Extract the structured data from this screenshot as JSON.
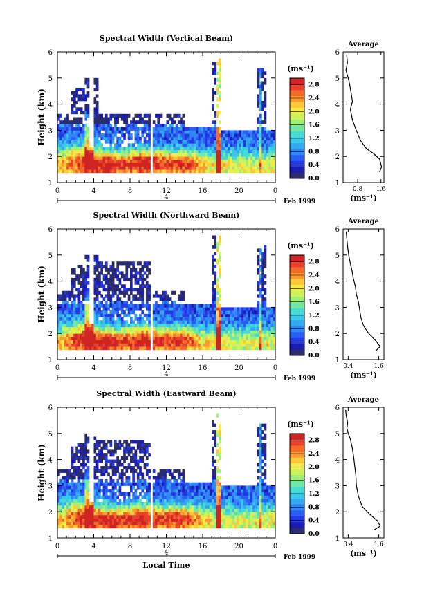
{
  "colorbar": {
    "unit_label": "(ms⁻¹)",
    "ticks": [
      "2.8",
      "2.4",
      "2.0",
      "1.6",
      "1.2",
      "0.8",
      "0.4",
      "0.0"
    ],
    "colors": [
      "#2b2c6e",
      "#1b1db0",
      "#2438e6",
      "#2a5ef5",
      "#2f86f5",
      "#33a8f0",
      "#37c8ea",
      "#46dcd4",
      "#6ee8a4",
      "#9ef07a",
      "#cff25c",
      "#f4ec44",
      "#fbc93a",
      "#fb9a30",
      "#f56a28",
      "#e8402a",
      "#cf2424"
    ]
  },
  "chart_data": [
    {
      "type": "heatmap",
      "title": "Spectral Width (Vertical Beam)",
      "ylabel": "Height (km)",
      "xlabel": "",
      "x_ticks": [
        "0",
        "4",
        "8",
        "12",
        "16",
        "20",
        "0"
      ],
      "y_ticks": [
        "1",
        "2",
        "3",
        "4",
        "5",
        "6"
      ],
      "xlim": [
        0,
        24
      ],
      "ylim": [
        1,
        6
      ],
      "date_label": "Feb 1999",
      "date_day": "4",
      "color_range": [
        0.0,
        3.0
      ],
      "profile": {
        "title": "Average",
        "xlabel": "(ms⁻¹)",
        "x_ticks": [
          "0.8",
          "1.6"
        ],
        "xlim": [
          0.3,
          1.7
        ],
        "y_ticks": [
          "1",
          "2",
          "3",
          "4",
          "5",
          "6"
        ],
        "ylim": [
          1,
          6
        ],
        "points": [
          [
            1.55,
            1.4
          ],
          [
            1.62,
            1.6
          ],
          [
            1.55,
            1.9
          ],
          [
            1.35,
            2.1
          ],
          [
            1.1,
            2.3
          ],
          [
            0.9,
            2.6
          ],
          [
            0.75,
            3.0
          ],
          [
            0.62,
            3.4
          ],
          [
            0.55,
            3.8
          ],
          [
            0.62,
            4.1
          ],
          [
            0.58,
            4.4
          ],
          [
            0.55,
            4.6
          ],
          [
            0.5,
            4.9
          ],
          [
            0.45,
            5.1
          ],
          [
            0.4,
            5.3
          ],
          [
            0.45,
            5.6
          ],
          [
            0.42,
            5.9
          ]
        ]
      }
    },
    {
      "type": "heatmap",
      "title": "Spectral Width (Northward Beam)",
      "ylabel": "Height (km)",
      "xlabel": "",
      "x_ticks": [
        "0",
        "4",
        "8",
        "12",
        "16",
        "20",
        "0"
      ],
      "y_ticks": [
        "1",
        "2",
        "3",
        "4",
        "5",
        "6"
      ],
      "xlim": [
        0,
        24
      ],
      "ylim": [
        1,
        6
      ],
      "date_label": "Feb 1999",
      "date_day": "4",
      "color_range": [
        0.0,
        3.0
      ],
      "profile": {
        "title": "Average",
        "xlabel": "(ms⁻¹)",
        "x_ticks": [
          "0.4",
          "1.6"
        ],
        "xlim": [
          0.2,
          1.8
        ],
        "y_ticks": [
          "1",
          "2",
          "3",
          "4",
          "5",
          "6"
        ],
        "ylim": [
          1,
          6
        ],
        "points": [
          [
            1.5,
            1.35
          ],
          [
            1.65,
            1.5
          ],
          [
            1.5,
            1.7
          ],
          [
            1.2,
            2.0
          ],
          [
            1.0,
            2.3
          ],
          [
            0.9,
            2.6
          ],
          [
            0.85,
            2.9
          ],
          [
            0.8,
            3.2
          ],
          [
            0.72,
            3.5
          ],
          [
            0.68,
            3.8
          ],
          [
            0.6,
            4.1
          ],
          [
            0.55,
            4.4
          ],
          [
            0.48,
            4.7
          ],
          [
            0.42,
            5.0
          ],
          [
            0.38,
            5.3
          ],
          [
            0.35,
            5.6
          ],
          [
            0.32,
            5.9
          ]
        ]
      }
    },
    {
      "type": "heatmap",
      "title": "Spectral Width (Eastward Beam)",
      "ylabel": "Height (km)",
      "xlabel": "Local Time",
      "x_ticks": [
        "0",
        "4",
        "8",
        "12",
        "16",
        "20",
        "0"
      ],
      "y_ticks": [
        "1",
        "2",
        "3",
        "4",
        "5",
        "6"
      ],
      "xlim": [
        0,
        24
      ],
      "ylim": [
        1,
        6
      ],
      "date_label": "Feb 1999",
      "date_day": "4",
      "color_range": [
        0.0,
        3.0
      ],
      "profile": {
        "title": "Average",
        "xlabel": "(ms⁻¹)",
        "x_ticks": [
          "0.4",
          "1.6"
        ],
        "xlim": [
          0.2,
          1.8
        ],
        "y_ticks": [
          "1",
          "2",
          "3",
          "4",
          "5",
          "6"
        ],
        "ylim": [
          1,
          6
        ],
        "points": [
          [
            1.4,
            1.3
          ],
          [
            1.65,
            1.45
          ],
          [
            1.55,
            1.65
          ],
          [
            1.25,
            1.9
          ],
          [
            0.95,
            2.2
          ],
          [
            0.8,
            2.6
          ],
          [
            0.72,
            3.0
          ],
          [
            0.7,
            3.4
          ],
          [
            0.65,
            3.8
          ],
          [
            0.6,
            4.2
          ],
          [
            0.55,
            4.5
          ],
          [
            0.48,
            4.8
          ],
          [
            0.4,
            5.0
          ],
          [
            0.35,
            5.2
          ],
          [
            0.38,
            5.4
          ],
          [
            0.32,
            5.7
          ],
          [
            0.3,
            5.9
          ]
        ]
      }
    }
  ]
}
